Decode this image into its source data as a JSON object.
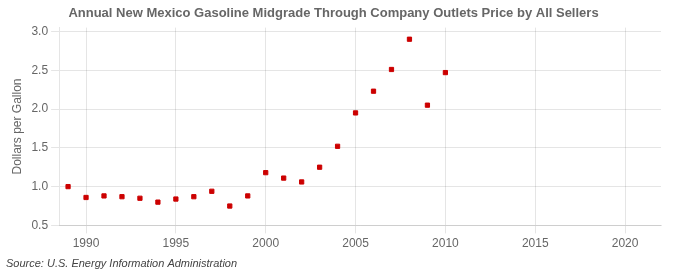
{
  "chart_data": {
    "type": "scatter",
    "title": "Annual New Mexico Gasoline Midgrade Through Company Outlets Price by All Sellers",
    "ylabel": "Dollars per Gallon",
    "annotations": [
      "Source: U.S. Energy Information Administration"
    ],
    "x": [
      1989,
      1990,
      1991,
      1992,
      1993,
      1994,
      1995,
      1996,
      1997,
      1998,
      1999,
      2000,
      2001,
      2002,
      2003,
      2004,
      2005,
      2006,
      2007,
      2008,
      2009,
      2010
    ],
    "values": [
      1.0,
      0.86,
      0.88,
      0.87,
      0.85,
      0.8,
      0.84,
      0.87,
      0.94,
      0.75,
      0.88,
      1.18,
      1.11,
      1.06,
      1.25,
      1.52,
      1.95,
      2.23,
      2.51,
      2.9,
      2.05,
      2.47
    ],
    "color": "#cc0000",
    "marker": "square",
    "xlim": [
      1988.5,
      2022
    ],
    "xticks": [
      1990,
      1995,
      2000,
      2005,
      2010,
      2015,
      2020
    ],
    "ylim": [
      0.5,
      3.05
    ],
    "yticks": [
      0.5,
      {
        "value": 1,
        "label": "1.0"
      },
      1.5,
      {
        "value": 2,
        "label": "2.0"
      },
      2.5,
      {
        "value": 3,
        "label": "3.0"
      }
    ],
    "grid": true
  }
}
